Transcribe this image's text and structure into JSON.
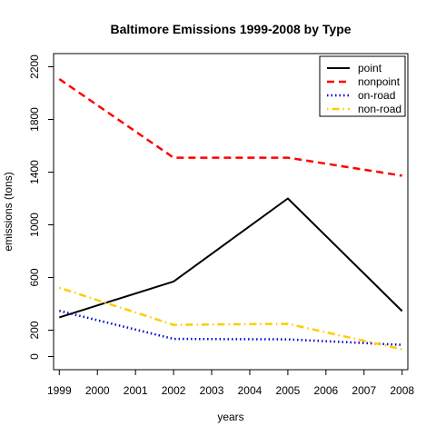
{
  "chart_data": {
    "type": "line",
    "title": "Baltimore Emissions 1999-2008 by Type",
    "xlabel": "years",
    "ylabel": "emissions (tons)",
    "x": [
      1999,
      2002,
      2005,
      2008
    ],
    "x_ticks": [
      "1999",
      "2000",
      "2001",
      "2002",
      "2003",
      "2004",
      "2005",
      "2006",
      "2007",
      "2008"
    ],
    "y_ticks": [
      "0",
      "200",
      "600",
      "1000",
      "1400",
      "1800",
      "2200"
    ],
    "xlim": [
      1998.85,
      2008.15
    ],
    "ylim": [
      -100,
      2300
    ],
    "legend_position": "top-right",
    "grid": false,
    "series": [
      {
        "name": "point",
        "values": [
          297,
          570,
          1200,
          345
        ],
        "color": "#000000",
        "dash": "solid"
      },
      {
        "name": "nonpoint",
        "values": [
          2107,
          1510,
          1510,
          1373
        ],
        "color": "#ff0000",
        "dash": "dashed"
      },
      {
        "name": "on-road",
        "values": [
          347,
          134,
          130,
          88
        ],
        "color": "#0000cc",
        "dash": "dotted"
      },
      {
        "name": "non-road",
        "values": [
          522,
          241,
          248,
          55
        ],
        "color": "#ffcc00",
        "dash": "dotdash"
      }
    ]
  }
}
